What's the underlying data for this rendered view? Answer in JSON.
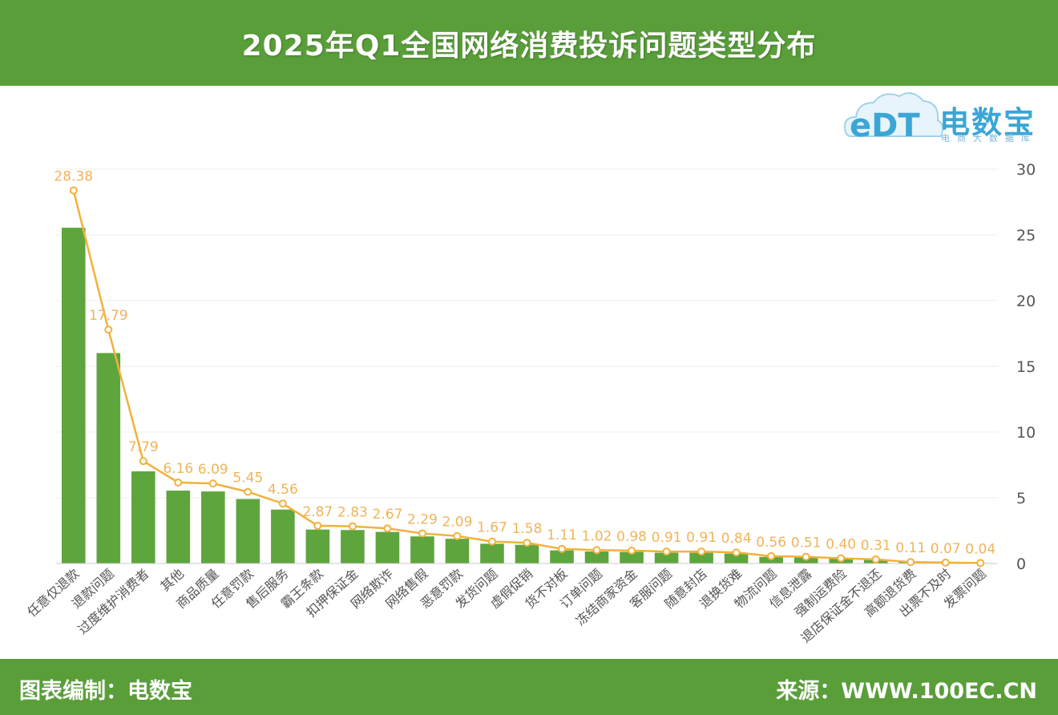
{
  "header": {
    "title": "2025年Q1全国网络消费投诉问题类型分布"
  },
  "logo": {
    "mark": "eDT",
    "brand": "电数宝",
    "slogan": "电商大数据库"
  },
  "footer": {
    "left": "图表编制：电数宝",
    "right": "来源：WWW.100EC.CN"
  },
  "colors": {
    "header": "#5a9e3a",
    "bar": "#5fa53d",
    "line": "#f2b13d",
    "label": "#f0b45a",
    "axis_text": "#555555",
    "grid": "#eeeeee"
  },
  "chart_data": {
    "type": "bar",
    "title": "2025年Q1全国网络消费投诉问题类型分布",
    "categories": [
      "任意仅退款",
      "退款问题",
      "过度维护消费者",
      "其他",
      "商品质量",
      "任意罚款",
      "售后服务",
      "霸王条款",
      "扣押保证金",
      "网络欺诈",
      "网络售假",
      "恶意罚款",
      "发货问题",
      "虚假促销",
      "货不对板",
      "订单问题",
      "冻结商家资金",
      "客服问题",
      "随意封店",
      "退换货难",
      "物流问题",
      "信息泄露",
      "强制运费险",
      "退店保证金不退还",
      "高额退货费",
      "出票不及时",
      "发票问题"
    ],
    "values": [
      28.38,
      17.79,
      7.79,
      6.16,
      6.09,
      5.45,
      4.56,
      2.87,
      2.83,
      2.67,
      2.29,
      2.09,
      1.67,
      1.58,
      1.11,
      1.02,
      0.98,
      0.91,
      0.91,
      0.84,
      0.56,
      0.51,
      0.4,
      0.31,
      0.11,
      0.07,
      0.04
    ],
    "data_labels": [
      "28.38",
      "17.79",
      "7.79",
      "6.16",
      "6.09",
      "5.45",
      "4.56",
      "2.87",
      "2.83",
      "2.67",
      "2.29",
      "2.09",
      "1.67",
      "1.58",
      "1.11",
      "1.02",
      "0.98",
      "0.91",
      "0.91",
      "0.84",
      "0.56",
      "0.51",
      "0.40",
      "0.31",
      "0.11",
      "0.07",
      "0.04"
    ],
    "y_axis": {
      "unit": "%",
      "min": 0,
      "max": 30,
      "ticks": [
        0,
        5,
        10,
        15,
        20,
        25,
        30
      ],
      "position": "right"
    },
    "grid": true
  }
}
